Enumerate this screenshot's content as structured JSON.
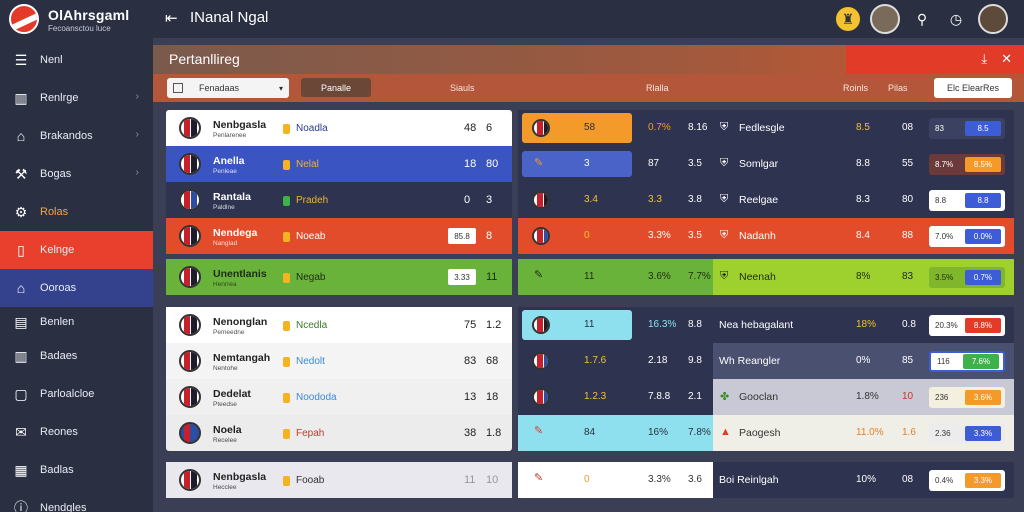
{
  "app": {
    "logo_title": "OlAhrsgaml",
    "logo_sub": "Fecoansctou luce",
    "title": "INanal Ngal"
  },
  "colors": {
    "accent_red": "#e8402c",
    "accent_blue": "#34428d",
    "accent_orange": "#f39a2a",
    "green": "#7ec23b",
    "sidebar": "#2b2f42"
  },
  "sidebar": {
    "items": [
      {
        "label": "Nenl",
        "icon": "menu-icon"
      },
      {
        "label": "Renlrge",
        "icon": "book-icon"
      },
      {
        "label": "Brakandos",
        "icon": "home-icon"
      },
      {
        "label": "Bogas",
        "icon": "tools-icon"
      },
      {
        "label": "Rolas",
        "icon": "gear-icon"
      },
      {
        "label": "Kelnge",
        "icon": "doc-icon"
      },
      {
        "label": "Ooroas",
        "icon": "home-icon"
      },
      {
        "label": "Benlen",
        "icon": "list-icon"
      },
      {
        "label": "Badaes",
        "icon": "doc-icon"
      },
      {
        "label": "Parloalcloe",
        "icon": "chat-icon"
      },
      {
        "label": "Reones",
        "icon": "mail-icon"
      },
      {
        "label": "Badlas",
        "icon": "box-icon"
      },
      {
        "label": "Nendgles",
        "icon": "info-icon"
      }
    ]
  },
  "panel": {
    "title": "Pertanllireg",
    "filter_select": "Fenadaas",
    "filter_button": "Panalle",
    "col_headers": [
      "Siauls",
      "Rlalla",
      "Roinls",
      "Pilas"
    ],
    "filter_pill": "Elc ElearRes"
  },
  "group1": [
    {
      "name": "Nenbgasla",
      "sub": "Penlarenee",
      "tag": "Noadla",
      "s1": "48",
      "s2": "6",
      "mid": [
        "58",
        "0.7%",
        "8.16"
      ],
      "rname": "Fedlesgle",
      "r1": "8.5",
      "r2": "08",
      "rv": "83",
      "rc": "8.5"
    },
    {
      "name": "Anella",
      "sub": "Penleae",
      "tag": "Nelal",
      "s1": "18",
      "s2": "80",
      "mid": [
        "3",
        "87",
        "3.5"
      ],
      "rname": "Somlgar",
      "r1": "8.8",
      "r2": "55",
      "rv": "8.7%",
      "rc": "8.5%"
    },
    {
      "name": "Rantala",
      "sub": "Paldlne",
      "tag": "Pradeh",
      "s1": "0",
      "s2": "3",
      "mid": [
        "3.4",
        "3.3",
        "3.8"
      ],
      "rname": "Reelgae",
      "r1": "8.3",
      "r2": "80",
      "rv": "8.8",
      "rc": "8.8"
    },
    {
      "name": "Nendega",
      "sub": "Nanglad",
      "tag": "Noeab",
      "chip": "85.8",
      "s2": "8",
      "mid": [
        "0",
        "3.3%",
        "3.5"
      ],
      "rname": "Nadanh",
      "r1": "8.4",
      "r2": "88",
      "rv": "7.0%",
      "rc": "0.0%"
    }
  ],
  "highlight_row": {
    "name": "Unentlanis",
    "sub": "Henrrea",
    "tag": "Negab",
    "chip": "3.33",
    "s2": "11",
    "mid": [
      "11",
      "3.6%",
      "7.7%"
    ],
    "rname": "Neenah",
    "r1": "8%",
    "r2": "83",
    "rv": "3.5%",
    "rc": "0.7%"
  },
  "group2": [
    {
      "name": "Nenonglan",
      "sub": "Pemeedne",
      "tag": "Ncedla",
      "s1": "75",
      "s2": "1.2",
      "mid": [
        "11",
        "16.3%",
        "8.8"
      ],
      "rname": "Nea hebagalant",
      "r1": "18%",
      "r2": "0.8",
      "rv": "20.3%",
      "rc": "8.8%"
    },
    {
      "name": "Nemtangah",
      "sub": "Nentohe",
      "tag": "Nedolt",
      "s1": "83",
      "s2": "68",
      "mid": [
        "1.7.6",
        "2.18",
        "9.8"
      ],
      "rname": "Wh Reangler",
      "r1": "0%",
      "r2": "85",
      "rv": "116",
      "rc": "7.6%"
    },
    {
      "name": "Dedelat",
      "sub": "Pteedse",
      "tag": "Noododa",
      "s1": "13",
      "s2": "18",
      "mid": [
        "1.2.3",
        "7.8.8",
        "2.1"
      ],
      "rname": "Gooclan",
      "r1": "1.8%",
      "r2": "10",
      "rv": "236",
      "rc": "3.6%"
    },
    {
      "name": "Noela",
      "sub": "Recelee",
      "tag": "Fepah",
      "s1": "38",
      "s2": "1.8",
      "mid": [
        "84",
        "16%",
        "7.8%"
      ],
      "rname": "Paogesh",
      "r1": "11.0%",
      "r2": "1.6",
      "rv": "2.36",
      "rc": "3.3%"
    }
  ],
  "bottom_row": {
    "name": "Nenbgasla",
    "sub": "Hecclee",
    "tag": "Fooab",
    "s1": "11",
    "s2": "10",
    "mid": [
      "0",
      "3.3%",
      "3.6"
    ],
    "rname": "Boi Reinlgah",
    "r1": "10%",
    "r2": "08",
    "rv": "0.4%",
    "rc": "3.3%"
  }
}
